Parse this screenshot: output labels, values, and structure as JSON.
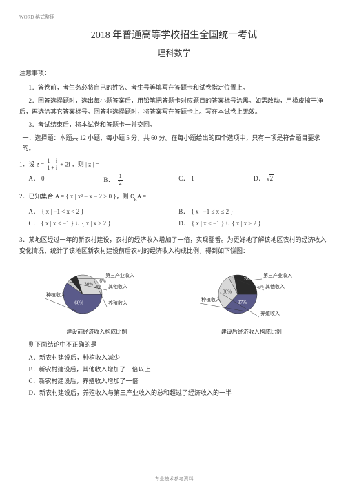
{
  "header_small": "WORD  格式整理",
  "title_main": "2018 年普通高等学校招生全国统一考试",
  "title_sub": "理科数学",
  "notice_head": "注意事项：",
  "notices": [
    "1．答卷前，考生务必将自己的姓名、考生号等填写在答题卡和试卷指定位置上。",
    "2．回答选择题时，选出每小题答案后，用铅笔把答题卡对应题目的答案标号涂黑。如需改动，用橡皮擦干净后，再选涂其它答案标号。回答非选择题时，将答案写在答题卡上。写在本试卷上无效。",
    "3．考试结束后，将本试卷和答题卡一并交回。"
  ],
  "section1": "一．选择题：本题共  12 小题，每小题  5 分，共 60 分。在每小题给出的四个选项中，只有一项是符合题目要求的。",
  "q1": {
    "stem_pre": "1．设 z =",
    "frac_num": "1 − i",
    "frac_den": "1 + i",
    "stem_post": " + 2i ，则 | z | =",
    "opts": {
      "A": "0",
      "B_num": "1",
      "B_den": "2",
      "C": "1",
      "D": "2"
    }
  },
  "q2": {
    "stem": "2．已知集合  A = { x | x² − x − 2 > 0 }，则 ∁",
    "stem_sub": "R",
    "stem_post": "A =",
    "opts": {
      "A": "{ x | −1 < x < 2 }",
      "B": "{ x | −1 ≤ x ≤ 2 }",
      "C": "{ x | x < −1 } ∪ { x | x > 2 }",
      "D": "{ x | x ≤ −1 } ∪ { x | x ≥ 2 }"
    }
  },
  "q3": {
    "stem": "3．某地区经过一年的新农村建设，农村的经济收入增加了一倍，实现翻番。为更好地了解该地区农村的经济收入变化情况，统计了该地区新农村建设前后农村的经济收入构成比例，得到如下饼图：",
    "chart1": {
      "slices": [
        {
          "label": "种植收入",
          "pct": "60%",
          "color": "#5a5a8a",
          "start": 90,
          "end": 306
        },
        {
          "label": "其他收入",
          "pct": "4%",
          "color": "#c8c8c8",
          "start": 306,
          "end": 320.4
        },
        {
          "label": "第三产业收入",
          "pct": "6%",
          "color": "#2a2a2a",
          "start": 320.4,
          "end": 342
        },
        {
          "label": "养殖收入",
          "pct": "30%",
          "color": "#d8d8d8",
          "start": 342,
          "end": 450
        }
      ]
    },
    "chart2": {
      "slices": [
        {
          "label": "种植收入",
          "pct": "37%",
          "color": "#5a5a8a",
          "start": 90,
          "end": 223.2
        },
        {
          "label": "养殖收入",
          "pct": "30%",
          "color": "#d8d8d8",
          "start": 223.2,
          "end": 331.2
        },
        {
          "label": "其他收入",
          "pct": "5%",
          "color": "#c8c8c8",
          "start": 331.2,
          "end": 349.2
        },
        {
          "label": "第三产业收入",
          "pct": "28%",
          "color": "#2a2a2a",
          "start": 349.2,
          "end": 450
        }
      ]
    },
    "caption1": "建设前经济收入构成比例",
    "caption2": "建设后经济收入构成比例",
    "conclusion_head": "则下面结论中不正确的是",
    "conclusions": [
      "A．新农村建设后，种植收入减少",
      "B．新农村建设后，其他收入增加了一倍以上",
      "C．新农村建设后，养殖收入增加了一倍",
      "D．新农村建设后，养殖收入与第三产业收入的总和超过了经济收入的一半"
    ]
  },
  "footer": "专业技术参考资料",
  "label_A": "A．",
  "label_B": "B．",
  "label_C": "C．",
  "label_D": "D．"
}
